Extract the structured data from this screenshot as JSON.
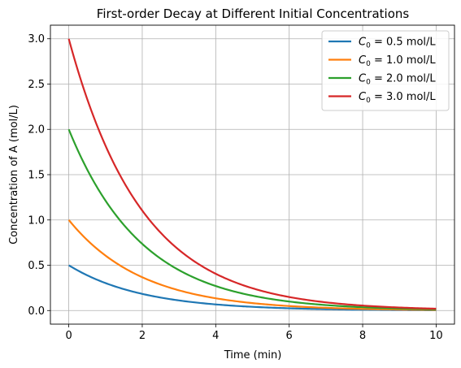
{
  "chart_data": {
    "type": "line",
    "title": "First-order Decay at Different Initial Concentrations",
    "xlabel": "Time (min)",
    "ylabel": "Concentration of A (mol/L)",
    "xlim": [
      -0.5,
      10.5
    ],
    "ylim": [
      -0.15,
      3.15
    ],
    "xticks": [
      0,
      2,
      4,
      6,
      8,
      10
    ],
    "xtick_labels": [
      "0",
      "2",
      "4",
      "6",
      "8",
      "10"
    ],
    "yticks": [
      0.0,
      0.5,
      1.0,
      1.5,
      2.0,
      2.5,
      3.0
    ],
    "ytick_labels": [
      "0.0",
      "0.5",
      "1.0",
      "1.5",
      "2.0",
      "2.5",
      "3.0"
    ],
    "grid": true,
    "legend_position": "top-right",
    "rate_constant_per_min": 0.5,
    "x": [
      0,
      0.5,
      1,
      1.5,
      2,
      2.5,
      3,
      3.5,
      4,
      4.5,
      5,
      5.5,
      6,
      6.5,
      7,
      7.5,
      8,
      8.5,
      9,
      9.5,
      10
    ],
    "series": [
      {
        "name": "C0 = 0.5 mol/L",
        "legend_prefix": "C",
        "legend_sub": "0",
        "legend_suffix": " = 0.5 mol/L",
        "color": "#1f77b4",
        "values": [
          0.5,
          0.389,
          0.303,
          0.236,
          0.184,
          0.143,
          0.112,
          0.087,
          0.068,
          0.053,
          0.041,
          0.032,
          0.025,
          0.019,
          0.015,
          0.012,
          0.009,
          0.007,
          0.006,
          0.004,
          0.003
        ]
      },
      {
        "name": "C0 = 1.0 mol/L",
        "legend_prefix": "C",
        "legend_sub": "0",
        "legend_suffix": " = 1.0 mol/L",
        "color": "#ff7f0e",
        "values": [
          1.0,
          0.779,
          0.607,
          0.472,
          0.368,
          0.287,
          0.223,
          0.174,
          0.135,
          0.105,
          0.082,
          0.064,
          0.05,
          0.039,
          0.03,
          0.024,
          0.018,
          0.014,
          0.011,
          0.009,
          0.007
        ]
      },
      {
        "name": "C0 = 2.0 mol/L",
        "legend_prefix": "C",
        "legend_sub": "0",
        "legend_suffix": " = 2.0 mol/L",
        "color": "#2ca02c",
        "values": [
          2.0,
          1.558,
          1.213,
          0.945,
          0.736,
          0.573,
          0.446,
          0.348,
          0.271,
          0.211,
          0.164,
          0.128,
          0.1,
          0.078,
          0.06,
          0.047,
          0.037,
          0.029,
          0.022,
          0.017,
          0.013
        ]
      },
      {
        "name": "C0 = 3.0 mol/L",
        "legend_prefix": "C",
        "legend_sub": "0",
        "legend_suffix": " = 3.0 mol/L",
        "color": "#d62728",
        "values": [
          3.0,
          2.336,
          1.82,
          1.417,
          1.104,
          0.86,
          0.669,
          0.521,
          0.406,
          0.316,
          0.246,
          0.192,
          0.149,
          0.116,
          0.091,
          0.071,
          0.055,
          0.043,
          0.033,
          0.026,
          0.02
        ]
      }
    ]
  }
}
